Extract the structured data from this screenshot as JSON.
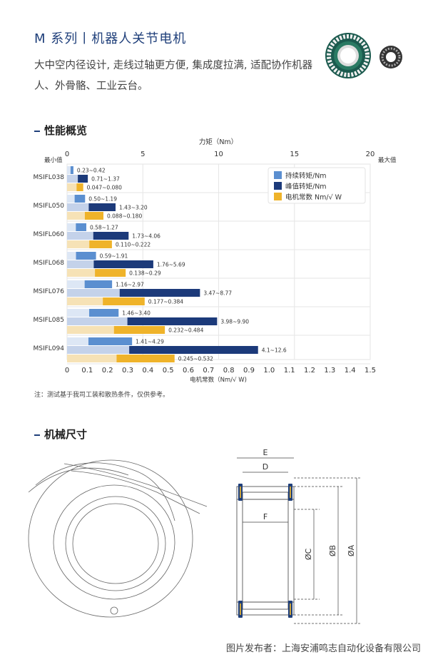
{
  "header": {
    "title": "M 系列丨机器人关节电机",
    "desc": "大中空内径设计, 走线过轴更方便, 集成度拉满, 适配协作机器人、外骨骼、工业云台。"
  },
  "sections": {
    "performance": "性能概览",
    "dimensions": "机械尺寸"
  },
  "chart_data": {
    "type": "bar",
    "top_axis_label": "力矩（Nm）",
    "top_ticks": [
      "0",
      "5",
      "10",
      "15",
      "20"
    ],
    "top_range": [
      0,
      20
    ],
    "min_label": "最小值",
    "max_label": "最大值",
    "bottom_axis_label": "电机常数（Nm/√ W)",
    "bottom_ticks": [
      "0",
      "0.1",
      "0.2",
      "0.3",
      "0.4",
      "0.5",
      "0.6",
      "0.7",
      "0.8",
      "0.9",
      "1.0",
      "1.1",
      "1.2",
      "1.3",
      "1.4",
      "1.5"
    ],
    "bottom_range": [
      0,
      1.5
    ],
    "legend": [
      {
        "name": "持续转矩/Nm",
        "color": "#5b8fd0"
      },
      {
        "name": "峰值转矩/Nm",
        "color": "#1c3a7a"
      },
      {
        "name": "电机常数 Nm/√ W",
        "color": "#efb32a"
      }
    ],
    "categories": [
      "MSIFL038",
      "MSIFL050",
      "MSIFL060",
      "MSIFL068",
      "MSIFL076",
      "MSIFL085",
      "MSIFL094"
    ],
    "series": [
      {
        "name": "持续转矩/Nm",
        "scale": "top",
        "min": [
          0.23,
          0.5,
          0.58,
          0.59,
          1.16,
          1.46,
          1.41
        ],
        "max": [
          0.42,
          1.19,
          1.27,
          1.91,
          2.97,
          3.4,
          4.29
        ],
        "labels": [
          "0.23~0.42",
          "0.50~1.19",
          "0.58~1.27",
          "0.59~1.91",
          "1.16~2.97",
          "1.46~3.40",
          "1.41~4.29"
        ]
      },
      {
        "name": "峰值转矩/Nm",
        "scale": "top",
        "min": [
          0.71,
          1.43,
          1.73,
          1.76,
          3.47,
          3.98,
          4.1
        ],
        "max": [
          1.37,
          3.2,
          4.06,
          5.69,
          8.77,
          9.9,
          12.6
        ],
        "labels": [
          "0.71~1.37",
          "1.43~3.20",
          "1.73~4.06",
          "1.76~5.69",
          "3.47~8.77",
          "3.98~9.90",
          "4.1~12.6"
        ]
      },
      {
        "name": "电机常数 Nm/√ W",
        "scale": "bottom",
        "min": [
          0.047,
          0.088,
          0.11,
          0.138,
          0.177,
          0.232,
          0.245
        ],
        "max": [
          0.08,
          0.18,
          0.222,
          0.29,
          0.384,
          0.484,
          0.532
        ],
        "labels": [
          "0.047~0.080",
          "0.088~0.180",
          "0.110~0.222",
          "0.138~0.29",
          "0.177~0.384",
          "0.232~0.484",
          "0.245~0.532"
        ]
      }
    ]
  },
  "note": "注：测试基于我司工装和散热条件，仅供参考。",
  "dimension_labels": {
    "E": "E",
    "D": "D",
    "F": "F",
    "C": "ØC",
    "B": "ØB",
    "A": "ØA"
  },
  "footer": "图片发布者：上海安浦鸣志自动化设备有限公司"
}
